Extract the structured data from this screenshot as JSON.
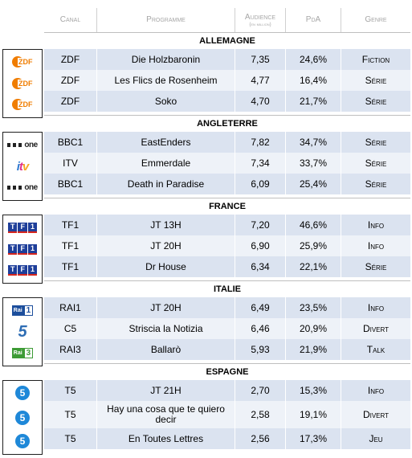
{
  "headers": {
    "canal": "Canal",
    "programme": "Programme",
    "audience": "Audience",
    "audience_sub": "(en million)",
    "pda": "PdA",
    "genre": "Genre"
  },
  "sections": [
    {
      "country": "ALLEMAGNE",
      "rows": [
        {
          "logo": "zdf-logo",
          "canal": "ZDF",
          "programme": "Die Holzbaronin",
          "audience": "7,35",
          "pda": "24,6%",
          "genre": "Fiction"
        },
        {
          "logo": "zdf-logo",
          "canal": "ZDF",
          "programme": "Les Flics de Rosenheim",
          "audience": "4,77",
          "pda": "16,4%",
          "genre": "Série"
        },
        {
          "logo": "zdf-logo",
          "canal": "ZDF",
          "programme": "Soko",
          "audience": "4,70",
          "pda": "21,7%",
          "genre": "Série"
        }
      ]
    },
    {
      "country": "ANGLETERRE",
      "rows": [
        {
          "logo": "bbc-one-logo",
          "canal": "BBC1",
          "programme": "EastEnders",
          "audience": "7,82",
          "pda": "34,7%",
          "genre": "Série"
        },
        {
          "logo": "itv-logo",
          "canal": "ITV",
          "programme": "Emmerdale",
          "audience": "7,34",
          "pda": "33,7%",
          "genre": "Série"
        },
        {
          "logo": "bbc-one-logo",
          "canal": "BBC1",
          "programme": "Death in Paradise",
          "audience": "6,09",
          "pda": "25,4%",
          "genre": "Série"
        }
      ]
    },
    {
      "country": "FRANCE",
      "rows": [
        {
          "logo": "tf1-logo",
          "canal": "TF1",
          "programme": "JT 13H",
          "audience": "7,20",
          "pda": "46,6%",
          "genre": "Info"
        },
        {
          "logo": "tf1-logo",
          "canal": "TF1",
          "programme": "JT 20H",
          "audience": "6,90",
          "pda": "25,9%",
          "genre": "Info"
        },
        {
          "logo": "tf1-logo",
          "canal": "TF1",
          "programme": "Dr House",
          "audience": "6,34",
          "pda": "22,1%",
          "genre": "Série"
        }
      ]
    },
    {
      "country": "ITALIE",
      "rows": [
        {
          "logo": "rai1-logo",
          "canal": "RAI1",
          "programme": "JT 20H",
          "audience": "6,49",
          "pda": "23,5%",
          "genre": "Info"
        },
        {
          "logo": "canale5-logo",
          "canal": "C5",
          "programme": "Striscia la Notizia",
          "audience": "6,46",
          "pda": "20,9%",
          "genre": "Divert"
        },
        {
          "logo": "rai3-logo",
          "canal": "RAI3",
          "programme": "Ballarò",
          "audience": "5,93",
          "pda": "21,9%",
          "genre": "Talk"
        }
      ]
    },
    {
      "country": "ESPAGNE",
      "rows": [
        {
          "logo": "telecinco-logo",
          "canal": "T5",
          "programme": "JT 21H",
          "audience": "2,70",
          "pda": "15,3%",
          "genre": "Info"
        },
        {
          "logo": "telecinco-logo",
          "canal": "T5",
          "programme": "Hay una cosa que te quiero decir",
          "audience": "2,58",
          "pda": "19,1%",
          "genre": "Divert"
        },
        {
          "logo": "telecinco-logo",
          "canal": "T5",
          "programme": "En Toutes Lettres",
          "audience": "2,56",
          "pda": "17,3%",
          "genre": "Jeu"
        }
      ]
    }
  ],
  "logo_text": {
    "zdf": "ZDF",
    "bbc": "one",
    "itv_i": "i",
    "itv_t": "t",
    "itv_v": "v",
    "tf1_a": "T",
    "tf1_b": "F",
    "tf1_c": "1",
    "rai": "Rai",
    "rai1_n": "1",
    "rai3_n": "3",
    "c5": "5",
    "t5": "5"
  }
}
